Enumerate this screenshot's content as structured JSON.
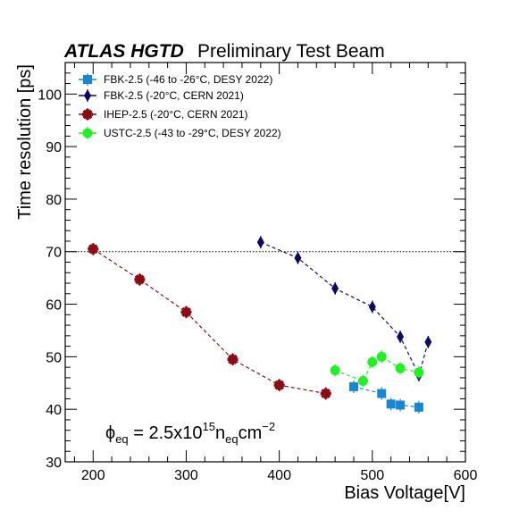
{
  "header": {
    "experiment": "ATLAS HGTD",
    "subtitle": "Preliminary Test Beam"
  },
  "annotation": {
    "phi": "ϕ",
    "sub1": "eq",
    "part1": " = 2.5x10",
    "exp1": "15",
    "part2": "n",
    "sub2": "eq",
    "part3": "cm",
    "exp2": "−2"
  },
  "chart_data": {
    "type": "scatter",
    "xlabel": "Bias Voltage[V]",
    "ylabel": "Time resolution [ps]",
    "xlim": [
      170,
      600
    ],
    "ylim": [
      30,
      106
    ],
    "x_ticks": [
      200,
      300,
      400,
      500,
      600
    ],
    "y_ticks": [
      30,
      40,
      50,
      60,
      70,
      80,
      90,
      100
    ],
    "reference_line": {
      "y": 70,
      "style": "dotted"
    },
    "grid": false,
    "legend_position": "top-left",
    "series": [
      {
        "name": "FBK-2.5 (-46 to -26°C, DESY 2022)",
        "color": "#1a86d0",
        "marker": "square",
        "points": [
          {
            "x": 480,
            "y": 44.3
          },
          {
            "x": 510,
            "y": 43.0
          },
          {
            "x": 520,
            "y": 41.0
          },
          {
            "x": 530,
            "y": 40.8
          },
          {
            "x": 550,
            "y": 40.4
          }
        ]
      },
      {
        "name": "FBK-2.5 (-20°C, CERN 2021)",
        "color": "#0a0a66",
        "marker": "thin-diamond",
        "points": [
          {
            "x": 380,
            "y": 71.8
          },
          {
            "x": 420,
            "y": 68.8
          },
          {
            "x": 460,
            "y": 63.0
          },
          {
            "x": 500,
            "y": 59.5
          },
          {
            "x": 530,
            "y": 53.8
          },
          {
            "x": 550,
            "y": 46.5
          },
          {
            "x": 560,
            "y": 52.8
          }
        ]
      },
      {
        "name": "IHEP-2.5 (-20°C, CERN 2021)",
        "color": "#8b0d14",
        "marker": "star",
        "points": [
          {
            "x": 200,
            "y": 70.5
          },
          {
            "x": 250,
            "y": 64.7
          },
          {
            "x": 300,
            "y": 58.5
          },
          {
            "x": 350,
            "y": 49.5
          },
          {
            "x": 400,
            "y": 44.6
          },
          {
            "x": 450,
            "y": 43.0
          }
        ]
      },
      {
        "name": "USTC-2.5 (-43 to -29°C, DESY 2022)",
        "color": "#22f022",
        "marker": "circle",
        "points": [
          {
            "x": 460,
            "y": 47.4
          },
          {
            "x": 490,
            "y": 45.4
          },
          {
            "x": 500,
            "y": 49.0
          },
          {
            "x": 510,
            "y": 50.0
          },
          {
            "x": 530,
            "y": 47.8
          },
          {
            "x": 550,
            "y": 47.0
          }
        ]
      }
    ]
  }
}
